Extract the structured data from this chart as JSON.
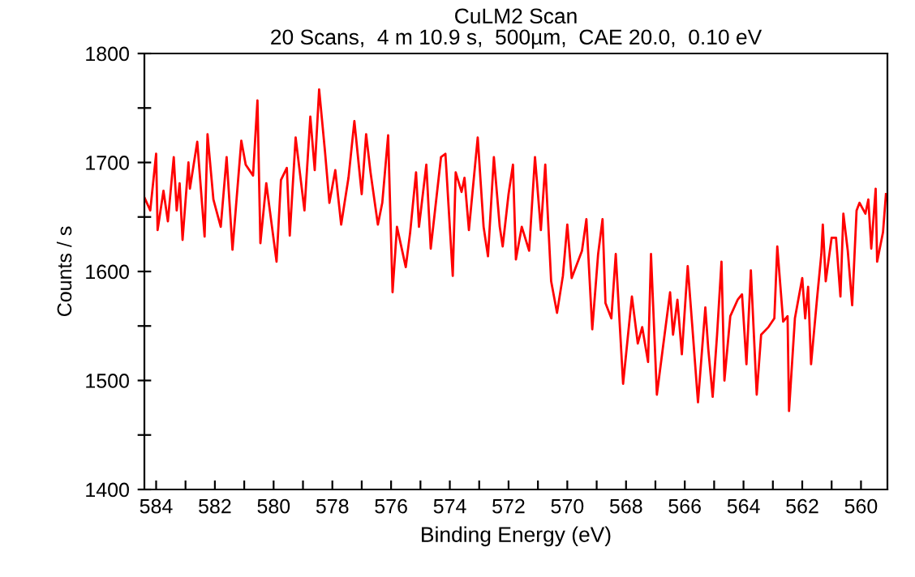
{
  "chart_data": {
    "type": "line",
    "title": "CuLM2 Scan",
    "subtitle": "20 Scans,  4 m 10.9 s,  500µm,  CAE 20.0,  0.10 eV",
    "xlabel": "Binding Energy (eV)",
    "ylabel": "Counts / s",
    "xlim": [
      584.4,
      559.1
    ],
    "ylim": [
      1400,
      1800
    ],
    "xticks": [
      584,
      {
        "value": 583,
        "label": null
      },
      582,
      {
        "value": 581,
        "label": null
      },
      580,
      {
        "value": 579,
        "label": null
      },
      578,
      {
        "value": 577,
        "label": null
      },
      576,
      {
        "value": 575,
        "label": null
      },
      574,
      {
        "value": 573,
        "label": null
      },
      572,
      {
        "value": 571,
        "label": null
      },
      570,
      {
        "value": 569,
        "label": null
      },
      568,
      {
        "value": 567,
        "label": null
      },
      566,
      {
        "value": 565,
        "label": null
      },
      564,
      {
        "value": 563,
        "label": null
      },
      562,
      {
        "value": 561,
        "label": null
      },
      560
    ],
    "yticks": [
      1400,
      {
        "value": 1450,
        "label": null
      },
      1500,
      {
        "value": 1550,
        "label": null
      },
      1600,
      {
        "value": 1650,
        "label": null
      },
      1700,
      {
        "value": 1750,
        "label": null
      },
      1800
    ],
    "grid": false,
    "legend": false,
    "marker": "none",
    "line_style": "solid",
    "series": [
      {
        "color": "#ff0000",
        "x": [
          584.4,
          584.2,
          584.0,
          583.95,
          583.75,
          583.6,
          583.4,
          583.3,
          583.2,
          583.1,
          582.9,
          582.85,
          582.6,
          582.35,
          582.25,
          582.05,
          581.8,
          581.6,
          581.4,
          581.1,
          580.95,
          580.7,
          580.55,
          580.45,
          580.25,
          579.9,
          579.75,
          579.55,
          579.45,
          579.25,
          578.95,
          578.75,
          578.6,
          578.45,
          578.25,
          578.1,
          577.9,
          577.7,
          577.45,
          577.25,
          577.0,
          576.85,
          576.7,
          576.45,
          576.3,
          576.1,
          575.95,
          575.8,
          575.5,
          575.35,
          575.15,
          575.05,
          574.8,
          574.65,
          574.3,
          574.15,
          573.9,
          573.8,
          573.6,
          573.5,
          573.35,
          573.05,
          572.85,
          572.7,
          572.5,
          572.3,
          572.2,
          572.0,
          571.85,
          571.75,
          571.55,
          571.3,
          571.1,
          570.9,
          570.75,
          570.55,
          570.35,
          570.15,
          570.0,
          569.85,
          569.5,
          569.35,
          569.15,
          568.95,
          568.8,
          568.7,
          568.5,
          568.35,
          568.1,
          567.8,
          567.6,
          567.45,
          567.25,
          567.15,
          566.95,
          566.75,
          566.5,
          566.4,
          566.25,
          566.1,
          565.9,
          565.75,
          565.55,
          565.3,
          565.2,
          565.05,
          564.9,
          564.75,
          564.65,
          564.45,
          564.2,
          564.05,
          563.9,
          563.75,
          563.55,
          563.4,
          563.15,
          562.95,
          562.85,
          562.65,
          562.5,
          562.45,
          562.25,
          562.0,
          561.9,
          561.8,
          561.7,
          561.5,
          561.35,
          561.3,
          561.2,
          561.0,
          560.85,
          560.7,
          560.6,
          560.45,
          560.3,
          560.15,
          560.05,
          559.85,
          559.75,
          559.65,
          559.5,
          559.45,
          559.25,
          559.15
        ],
        "values": [
          1668,
          1656,
          1708,
          1638,
          1674,
          1646,
          1705,
          1656,
          1681,
          1629,
          1700,
          1676,
          1719,
          1632,
          1726,
          1666,
          1641,
          1705,
          1620,
          1720,
          1698,
          1688,
          1757,
          1626,
          1681,
          1609,
          1684,
          1695,
          1633,
          1723,
          1656,
          1742,
          1693,
          1767,
          1710,
          1663,
          1693,
          1643,
          1686,
          1738,
          1671,
          1726,
          1691,
          1643,
          1663,
          1725,
          1581,
          1641,
          1604,
          1636,
          1691,
          1641,
          1698,
          1621,
          1705,
          1708,
          1596,
          1691,
          1673,
          1686,
          1638,
          1723,
          1641,
          1614,
          1705,
          1641,
          1623,
          1671,
          1698,
          1611,
          1641,
          1619,
          1705,
          1638,
          1698,
          1591,
          1562,
          1596,
          1643,
          1594,
          1619,
          1648,
          1547,
          1616,
          1648,
          1571,
          1557,
          1616,
          1497,
          1577,
          1534,
          1549,
          1517,
          1616,
          1487,
          1529,
          1581,
          1542,
          1574,
          1524,
          1605,
          1552,
          1480,
          1567,
          1529,
          1485,
          1542,
          1609,
          1500,
          1559,
          1574,
          1579,
          1515,
          1601,
          1487,
          1542,
          1549,
          1557,
          1623,
          1554,
          1559,
          1472,
          1557,
          1594,
          1557,
          1586,
          1515,
          1574,
          1616,
          1643,
          1591,
          1631,
          1631,
          1577,
          1653,
          1619,
          1569,
          1656,
          1663,
          1653,
          1666,
          1621,
          1676,
          1609,
          1636,
          1671
        ]
      }
    ]
  }
}
